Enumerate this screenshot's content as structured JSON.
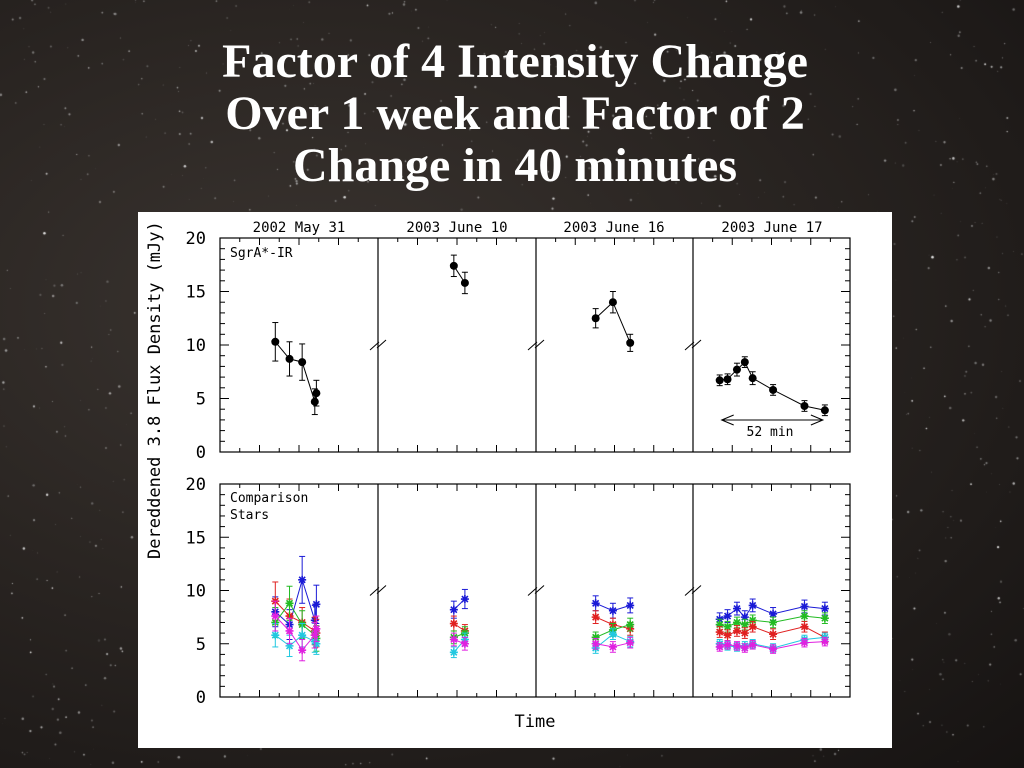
{
  "title_lines": [
    "Factor of 4 Intensity Change",
    "Over 1 week and Factor of 2",
    "Change in 40 minutes"
  ],
  "chart_data": {
    "type": "scatter",
    "panel_headers": [
      "2002 May 31",
      "2003 June 10",
      "2003 June 16",
      "2003 June 17"
    ],
    "ylabel": "Dereddened 3.8 Flux Density (mJy)",
    "xlabel": "Time",
    "ylim": [
      0,
      20
    ],
    "yticks": [
      "0",
      "5",
      "10",
      "15",
      "20"
    ],
    "top_label": "SgrA*-IR",
    "bottom_label_lines": [
      "Comparison",
      "Stars"
    ],
    "annotation": "52 min",
    "colors": {
      "target": "#000000",
      "blue": "#1a1ad6",
      "red": "#e02020",
      "green": "#22bb22",
      "cyan": "#22c8e0",
      "magenta": "#e020e0"
    },
    "top": [
      {
        "x": [
          0.35,
          0.44,
          0.52,
          0.6,
          0.61
        ],
        "y": [
          10.3,
          8.7,
          8.4,
          4.7,
          5.5
        ],
        "err": [
          1.8,
          1.6,
          1.7,
          1.2,
          1.2
        ]
      },
      {
        "x": [
          0.48,
          0.55
        ],
        "y": [
          17.4,
          15.8
        ],
        "err": [
          1.0,
          1.0
        ]
      },
      {
        "x": [
          0.38,
          0.49,
          0.6
        ],
        "y": [
          12.5,
          14.0,
          10.2
        ],
        "err": [
          0.9,
          1.0,
          0.8
        ]
      },
      {
        "x": [
          0.17,
          0.22,
          0.28,
          0.33,
          0.38,
          0.51,
          0.71,
          0.84
        ],
        "y": [
          6.7,
          6.8,
          7.7,
          8.4,
          6.9,
          5.8,
          4.3,
          3.9
        ],
        "err": [
          0.5,
          0.5,
          0.6,
          0.5,
          0.6,
          0.5,
          0.5,
          0.5
        ]
      }
    ],
    "bottom": [
      {
        "x": [
          0.35,
          0.44,
          0.52,
          0.6,
          0.61
        ],
        "series": [
          {
            "color": "blue",
            "y": [
              8.0,
              6.8,
              11.0,
              7.2,
              8.7
            ],
            "err": [
              1.4,
              1.4,
              2.2,
              1.4,
              1.8
            ]
          },
          {
            "color": "red",
            "y": [
              9.0,
              7.6,
              7.0,
              6.2,
              6.0
            ],
            "err": [
              1.8,
              1.6,
              1.4,
              1.3,
              1.3
            ]
          },
          {
            "color": "green",
            "y": [
              7.0,
              8.8,
              6.8,
              5.8,
              5.5
            ],
            "err": [
              1.4,
              1.6,
              1.3,
              1.2,
              1.2
            ]
          },
          {
            "color": "cyan",
            "y": [
              5.8,
              4.8,
              5.8,
              5.2,
              5.0
            ],
            "err": [
              1.1,
              1.0,
              1.1,
              1.0,
              1.0
            ]
          },
          {
            "color": "magenta",
            "y": [
              7.6,
              6.2,
              4.4,
              5.8,
              6.4
            ],
            "err": [
              1.4,
              1.2,
              1.0,
              1.2,
              1.2
            ]
          }
        ]
      },
      {
        "x": [
          0.48,
          0.55
        ],
        "series": [
          {
            "color": "blue",
            "y": [
              8.2,
              9.2
            ],
            "err": [
              0.8,
              0.9
            ]
          },
          {
            "color": "red",
            "y": [
              6.9,
              6.2
            ],
            "err": [
              0.7,
              0.6
            ]
          },
          {
            "color": "green",
            "y": [
              5.6,
              6.0
            ],
            "err": [
              0.6,
              0.6
            ]
          },
          {
            "color": "cyan",
            "y": [
              4.2,
              5.4
            ],
            "err": [
              0.5,
              0.6
            ]
          },
          {
            "color": "magenta",
            "y": [
              5.4,
              5.0
            ],
            "err": [
              0.6,
              0.6
            ]
          }
        ]
      },
      {
        "x": [
          0.38,
          0.49,
          0.6
        ],
        "series": [
          {
            "color": "blue",
            "y": [
              8.8,
              8.1,
              8.6
            ],
            "err": [
              0.7,
              0.7,
              0.7
            ]
          },
          {
            "color": "red",
            "y": [
              7.5,
              6.8,
              6.4
            ],
            "err": [
              0.6,
              0.6,
              0.6
            ]
          },
          {
            "color": "green",
            "y": [
              5.6,
              6.3,
              6.8
            ],
            "err": [
              0.5,
              0.6,
              0.6
            ]
          },
          {
            "color": "cyan",
            "y": [
              4.6,
              5.9,
              5.2
            ],
            "err": [
              0.5,
              0.5,
              0.5
            ]
          },
          {
            "color": "magenta",
            "y": [
              5.0,
              4.7,
              5.1
            ],
            "err": [
              0.5,
              0.5,
              0.5
            ]
          }
        ]
      },
      {
        "x": [
          0.17,
          0.22,
          0.28,
          0.33,
          0.38,
          0.51,
          0.71,
          0.84
        ],
        "series": [
          {
            "color": "blue",
            "y": [
              7.3,
              7.6,
              8.3,
              7.5,
              8.6,
              7.8,
              8.5,
              8.3
            ],
            "err": [
              0.6,
              0.6,
              0.6,
              0.6,
              0.6,
              0.6,
              0.6,
              0.6
            ]
          },
          {
            "color": "green",
            "y": [
              6.8,
              6.6,
              7.0,
              6.8,
              7.2,
              7.0,
              7.6,
              7.4
            ],
            "err": [
              0.5,
              0.5,
              0.5,
              0.5,
              0.5,
              0.5,
              0.5,
              0.5
            ]
          },
          {
            "color": "red",
            "y": [
              6.1,
              5.8,
              6.2,
              6.0,
              6.6,
              5.9,
              6.6,
              5.6
            ],
            "err": [
              0.5,
              0.5,
              0.5,
              0.5,
              0.5,
              0.5,
              0.5,
              0.5
            ]
          },
          {
            "color": "cyan",
            "y": [
              5.0,
              4.8,
              4.7,
              4.8,
              5.0,
              4.6,
              5.4,
              5.6
            ],
            "err": [
              0.4,
              0.4,
              0.4,
              0.4,
              0.4,
              0.4,
              0.4,
              0.4
            ]
          },
          {
            "color": "magenta",
            "y": [
              4.7,
              4.9,
              4.8,
              4.6,
              4.9,
              4.5,
              5.1,
              5.2
            ],
            "err": [
              0.4,
              0.4,
              0.4,
              0.4,
              0.4,
              0.4,
              0.4,
              0.4
            ]
          }
        ]
      }
    ]
  }
}
